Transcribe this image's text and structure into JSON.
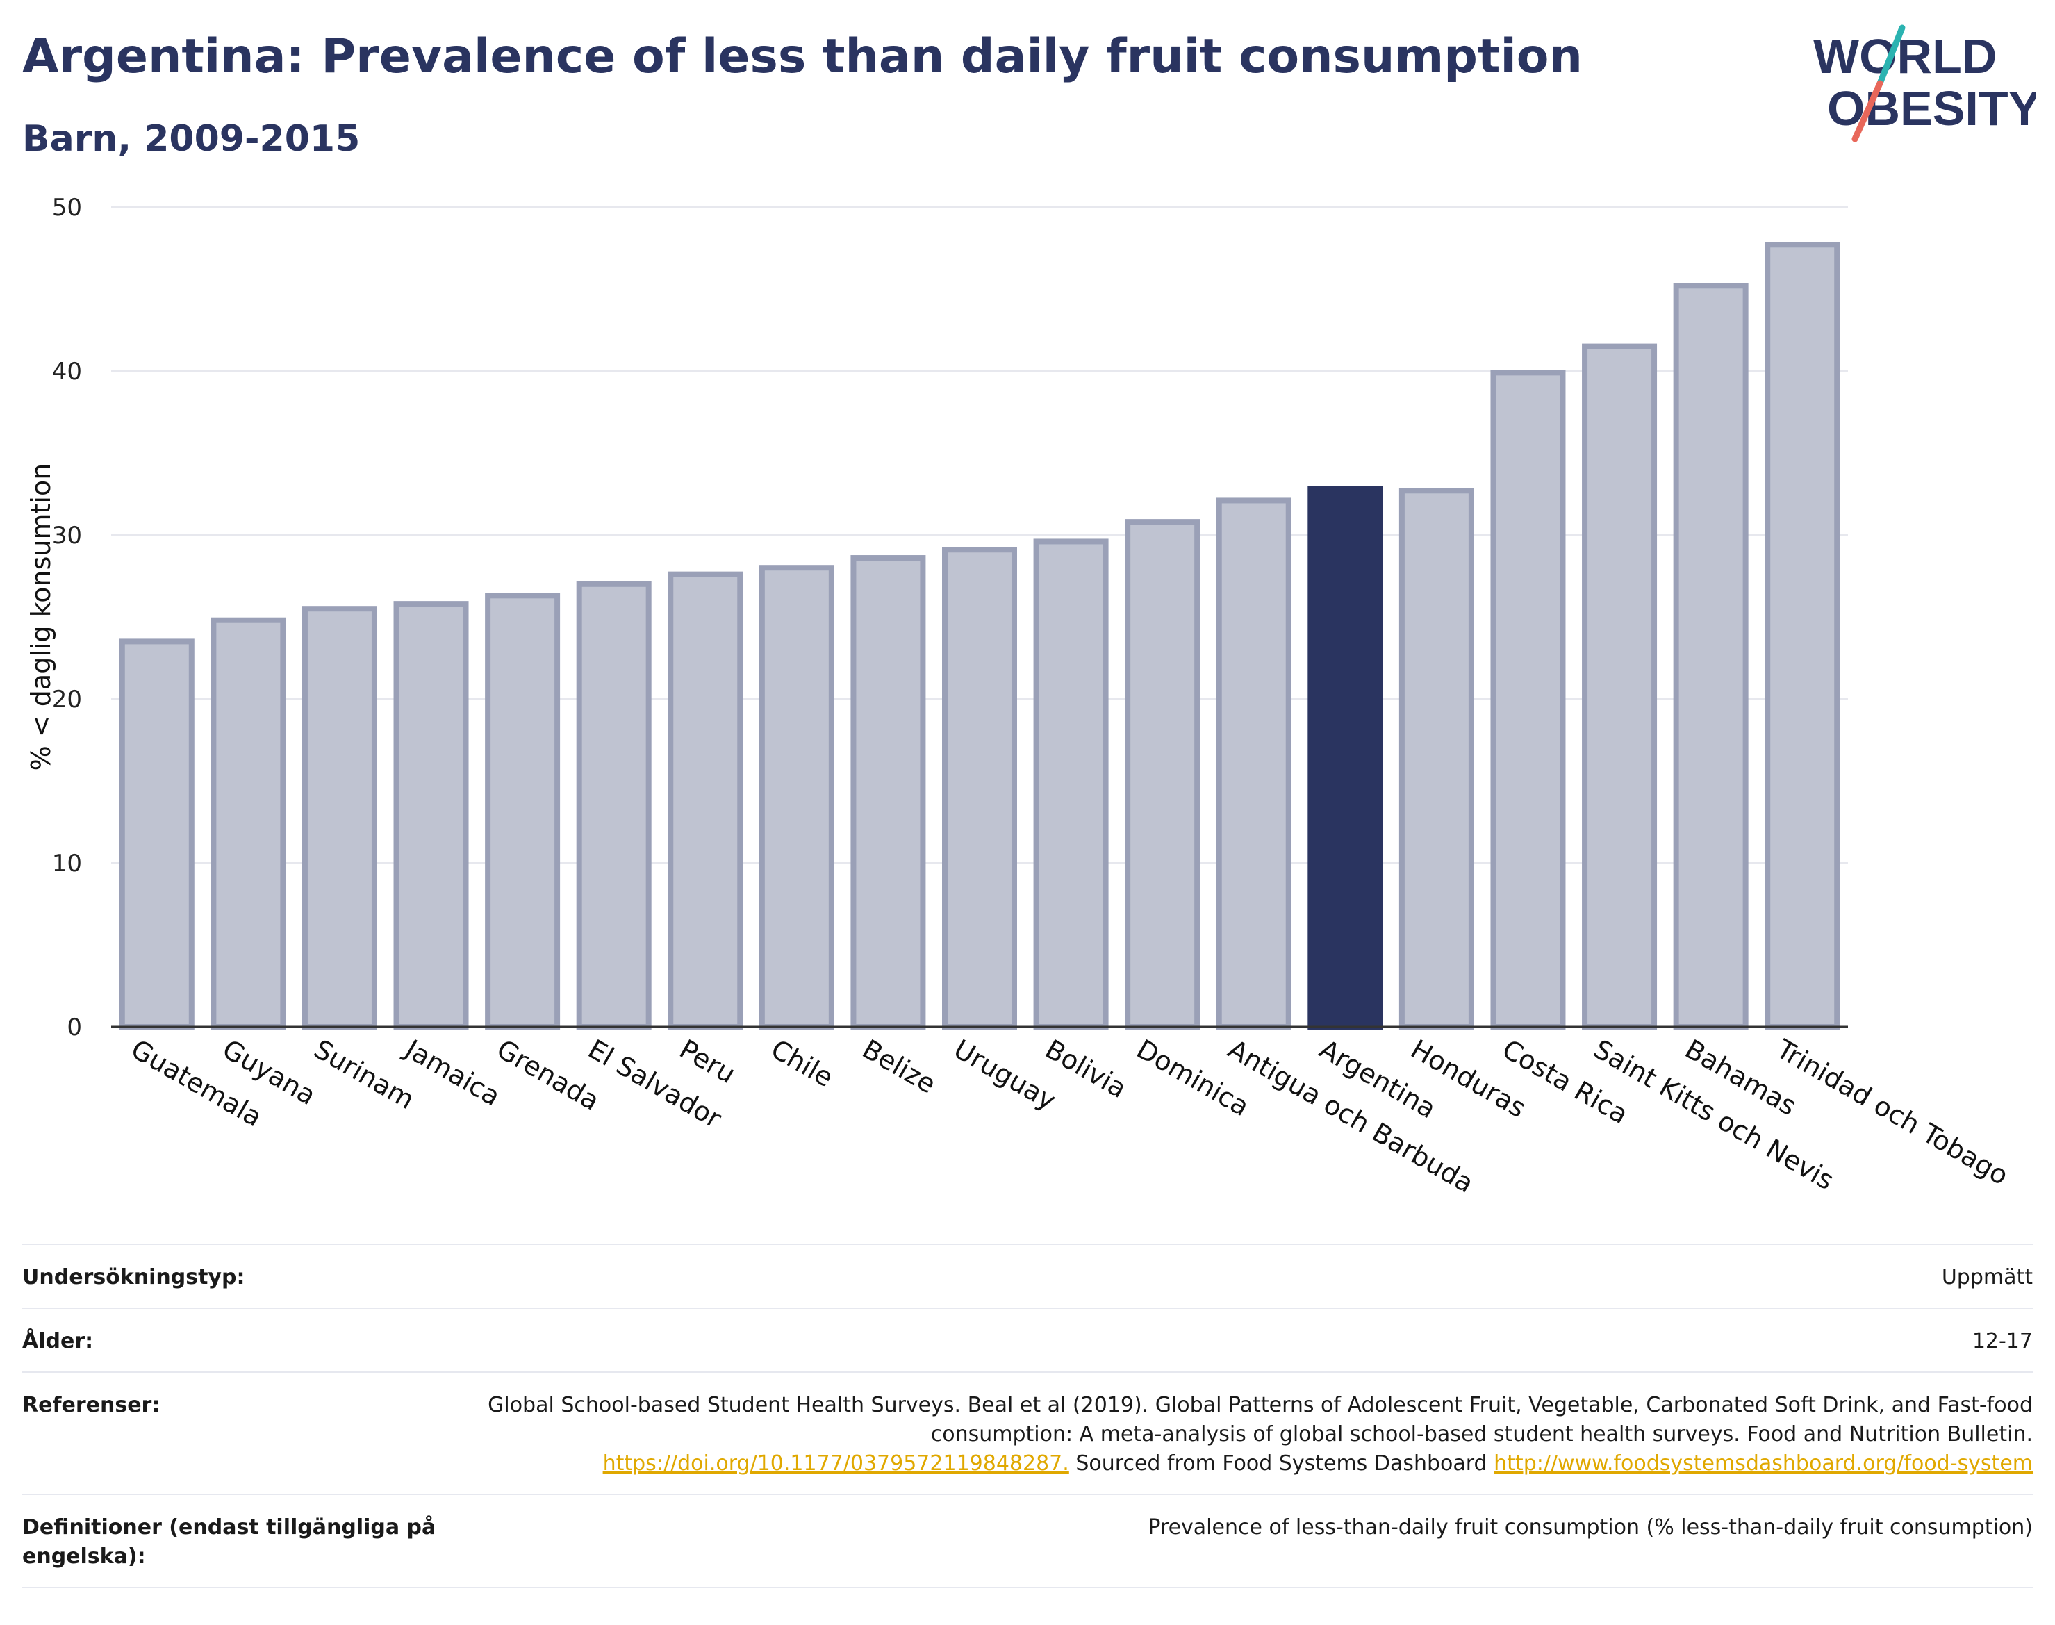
{
  "header": {
    "title": "Argentina: Prevalence of less than daily fruit consumption",
    "subtitle": "Barn, 2009-2015"
  },
  "logo": {
    "line1": "WORLD",
    "line2": "OBESITY",
    "accent_colors": [
      "#2bb3b1",
      "#e8675a"
    ]
  },
  "colors": {
    "bar": "#bfc3d1",
    "bar_border": "#9aa0b7",
    "highlight": "#2a3460",
    "axis": "#333333",
    "grid": "#e7e8ee"
  },
  "chart_data": {
    "type": "bar",
    "ylabel": "% < daglig konsumtion",
    "xlabel": "",
    "ylim": [
      0,
      50
    ],
    "yticks": [
      0,
      10,
      20,
      30,
      40,
      50
    ],
    "grid": true,
    "highlight": "Argentina",
    "categories": [
      "Guatemala",
      "Guyana",
      "Surinam",
      "Jamaica",
      "Grenada",
      "El Salvador",
      "Peru",
      "Chile",
      "Belize",
      "Uruguay",
      "Bolivia",
      "Dominica",
      "Antigua och Barbuda",
      "Argentina",
      "Honduras",
      "Costa Rica",
      "Saint Kitts och Nevis",
      "Bahamas",
      "Trinidad och Tobago"
    ],
    "values": [
      23.5,
      24.8,
      25.5,
      25.8,
      26.3,
      27.0,
      27.6,
      28.0,
      28.6,
      29.1,
      29.6,
      30.8,
      32.1,
      32.8,
      32.7,
      39.9,
      41.5,
      45.2,
      47.7
    ]
  },
  "metadata": {
    "rows": [
      {
        "label": "Undersökningstyp:",
        "value": "Uppmätt"
      },
      {
        "label": "Ålder:",
        "value": "12-17"
      },
      {
        "label": "Referenser:",
        "text1": "Global School-based Student Health Surveys. Beal et al (2019). Global Patterns of Adolescent Fruit, Vegetable, Carbonated Soft Drink, and Fast-food consumption: A meta-analysis of global school-based student health surveys. Food and Nutrition Bulletin.",
        "link1": "https://doi.org/10.1177/0379572119848287.",
        "text2": "Sourced from Food Systems Dashboard",
        "link2": "http://www.foodsystemsdashboard.org/food-system"
      },
      {
        "label": "Definitioner (endast tillgängliga på engelska):",
        "value": "Prevalence of less-than-daily fruit consumption (% less-than-daily fruit consumption)"
      }
    ]
  }
}
